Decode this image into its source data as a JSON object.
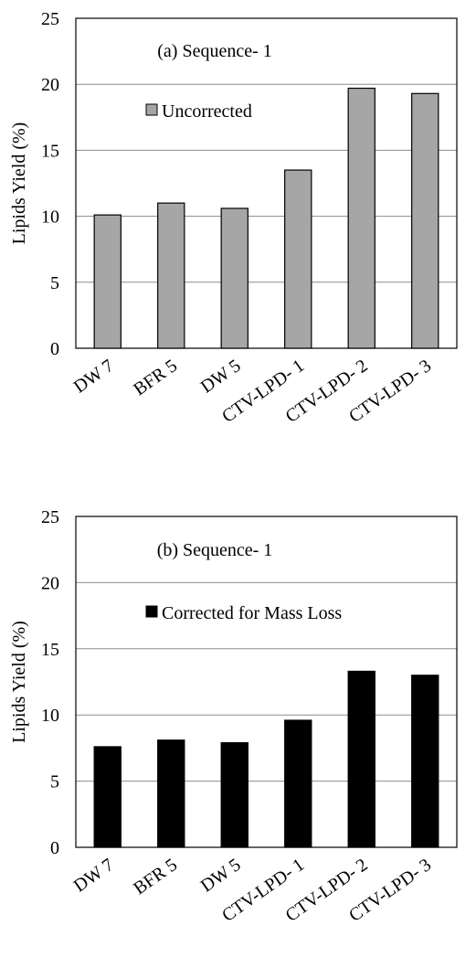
{
  "chart_data": [
    {
      "type": "bar",
      "title": "(a) Sequence- 1",
      "xlabel": "",
      "ylabel": "Lipids Yield (%)",
      "ylim": [
        0,
        25
      ],
      "yticks": [
        "0",
        "5",
        "10",
        "15",
        "20",
        "25"
      ],
      "grid": true,
      "legend_position": "top-center",
      "categories": [
        "DW 7",
        "BFR 5",
        "DW 5",
        "CTV-LPD- 1",
        "CTV-LPD- 2",
        "CTV-LPD- 3"
      ],
      "series": [
        {
          "name": "Uncorrected",
          "color": "#a6a6a6",
          "values": [
            10.1,
            11.0,
            10.6,
            13.5,
            19.7,
            19.3
          ]
        }
      ]
    },
    {
      "type": "bar",
      "title": "(b) Sequence- 1",
      "xlabel": "",
      "ylabel": "Lipids Yield (%)",
      "ylim": [
        0,
        25
      ],
      "yticks": [
        "0",
        "5",
        "10",
        "15",
        "20",
        "25"
      ],
      "grid": true,
      "legend_position": "top-center",
      "categories": [
        "DW 7",
        "BFR 5",
        "DW 5",
        "CTV-LPD- 1",
        "CTV-LPD- 2",
        "CTV-LPD- 3"
      ],
      "series": [
        {
          "name": "Corrected for Mass Loss",
          "color": "#000000",
          "values": [
            7.6,
            8.1,
            7.9,
            9.6,
            13.3,
            13.0
          ]
        }
      ]
    }
  ]
}
